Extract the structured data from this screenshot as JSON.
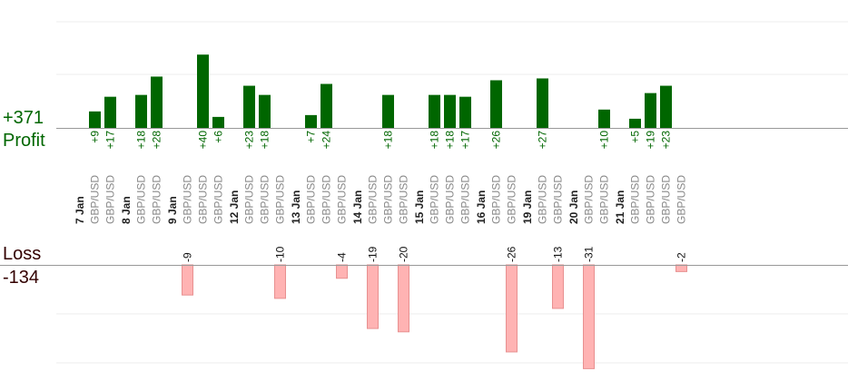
{
  "colors": {
    "profit_bar": "#006600",
    "profit_text": "#006600",
    "loss_bar_fill": "#ffb3b3",
    "loss_bar_stroke": "#e89090",
    "loss_heading": "#330000",
    "date_text": "#222222",
    "pair_text": "#888888",
    "axis_line": "#999999",
    "grid_line": "#eeeeee"
  },
  "summary": {
    "profit_total": "+371",
    "profit_label": "Profit",
    "loss_label": "Loss",
    "loss_total": "-134"
  },
  "chart_data": {
    "type": "bar",
    "legend": "none",
    "grid": true,
    "profit_ylim": [
      0,
      28
    ],
    "loss_ylim": [
      -31,
      0
    ],
    "days": [
      {
        "date": "7 Jan",
        "trades": [
          {
            "pair": "GBP/USD",
            "value": 9,
            "label": "+9"
          },
          {
            "pair": "GBP/USD",
            "value": 17,
            "label": "+17"
          }
        ]
      },
      {
        "date": "8 Jan",
        "trades": [
          {
            "pair": "GBP/USD",
            "value": 18,
            "label": "+18"
          },
          {
            "pair": "GBP/USD",
            "value": 28,
            "label": "+28"
          }
        ]
      },
      {
        "date": "9 Jan",
        "trades": [
          {
            "pair": "GBP/USD",
            "value": -9,
            "label": "-9"
          },
          {
            "pair": "GBP/USD",
            "value": 40,
            "label": "+40"
          },
          {
            "pair": "GBP/USD",
            "value": 6,
            "label": "+6"
          }
        ]
      },
      {
        "date": "12 Jan",
        "trades": [
          {
            "pair": "GBP/USD",
            "value": 23,
            "label": "+23"
          },
          {
            "pair": "GBP/USD",
            "value": 18,
            "label": "+18"
          },
          {
            "pair": "GBP/USD",
            "value": -10,
            "label": "-10"
          }
        ]
      },
      {
        "date": "13 Jan",
        "trades": [
          {
            "pair": "GBP/USD",
            "value": 7,
            "label": "+7"
          },
          {
            "pair": "GBP/USD",
            "value": 24,
            "label": "+24"
          },
          {
            "pair": "GBP/USD",
            "value": -4,
            "label": "-4"
          }
        ]
      },
      {
        "date": "14 Jan",
        "trades": [
          {
            "pair": "GBP/USD",
            "value": -19,
            "label": "-19"
          },
          {
            "pair": "GBP/USD",
            "value": 18,
            "label": "+18"
          },
          {
            "pair": "GBP/USD",
            "value": -20,
            "label": "-20"
          }
        ]
      },
      {
        "date": "15 Jan",
        "trades": [
          {
            "pair": "GBP/USD",
            "value": 18,
            "label": "+18"
          },
          {
            "pair": "GBP/USD",
            "value": 18,
            "label": "+18"
          },
          {
            "pair": "GBP/USD",
            "value": 17,
            "label": "+17"
          }
        ]
      },
      {
        "date": "16 Jan",
        "trades": [
          {
            "pair": "GBP/USD",
            "value": 26,
            "label": "+26"
          },
          {
            "pair": "GBP/USD",
            "value": -26,
            "label": "-26"
          }
        ]
      },
      {
        "date": "19 Jan",
        "trades": [
          {
            "pair": "GBP/USD",
            "value": 27,
            "label": "+27"
          },
          {
            "pair": "GBP/USD",
            "value": -13,
            "label": "-13"
          }
        ]
      },
      {
        "date": "20 Jan",
        "trades": [
          {
            "pair": "GBP/USD",
            "value": -31,
            "label": "-31"
          },
          {
            "pair": "GBP/USD",
            "value": 10,
            "label": "+10"
          }
        ]
      },
      {
        "date": "21 Jan",
        "trades": [
          {
            "pair": "GBP/USD",
            "value": 5,
            "label": "+5"
          },
          {
            "pair": "GBP/USD",
            "value": 19,
            "label": "+19"
          },
          {
            "pair": "GBP/USD",
            "value": 23,
            "label": "+23"
          },
          {
            "pair": "GBP/USD",
            "value": -2,
            "label": "-2"
          }
        ]
      }
    ]
  }
}
